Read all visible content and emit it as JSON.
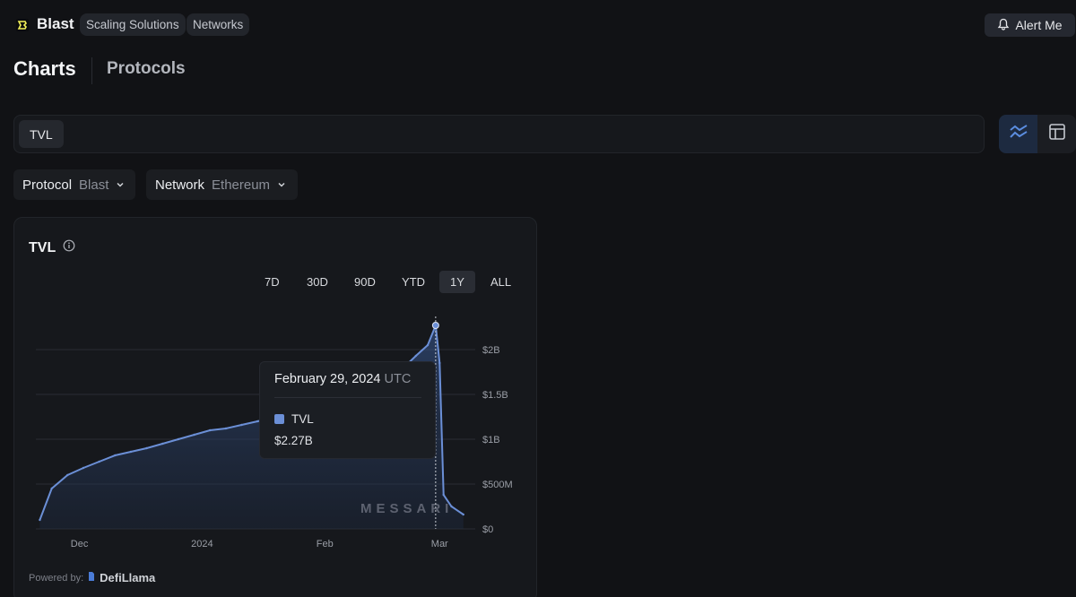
{
  "header": {
    "brand": "Blast",
    "pills": [
      "Scaling Solutions",
      "Networks"
    ],
    "alert_label": "Alert Me"
  },
  "tabs": {
    "active": "Charts",
    "other": "Protocols"
  },
  "metric_selector": {
    "chip": "TVL"
  },
  "view_modes": [
    "chart-view-icon",
    "table-view-icon"
  ],
  "filters": [
    {
      "key": "Protocol",
      "value": "Blast"
    },
    {
      "key": "Network",
      "value": "Ethereum"
    }
  ],
  "card": {
    "title": "TVL",
    "ranges": [
      "7D",
      "30D",
      "90D",
      "YTD",
      "1Y",
      "ALL"
    ],
    "active_range": "1Y",
    "tooltip": {
      "date": "February 29, 2024",
      "tz": "UTC",
      "series": "TVL",
      "value": "$2.27B"
    },
    "watermark": "MESSARI",
    "powered_by": "Powered by:",
    "powered_brand": "DefiLlama"
  },
  "colors": {
    "accent": "#6b8fd6",
    "background": "#111215",
    "card": "#16181c"
  },
  "chart_data": {
    "type": "area",
    "title": "TVL",
    "x_ticks": [
      "Dec",
      "2024",
      "Feb",
      "Mar"
    ],
    "y_ticks": [
      "$0",
      "$500M",
      "$1B",
      "$1.5B",
      "$2B"
    ],
    "ylim": [
      0,
      2500000000
    ],
    "x": [
      "2023-11-21",
      "2023-11-24",
      "2023-11-28",
      "2023-12-02",
      "2023-12-06",
      "2023-12-10",
      "2023-12-14",
      "2023-12-18",
      "2023-12-22",
      "2023-12-26",
      "2023-12-30",
      "2024-01-03",
      "2024-01-07",
      "2024-01-11",
      "2024-01-15",
      "2024-01-19",
      "2024-01-23",
      "2024-01-27",
      "2024-01-31",
      "2024-02-04",
      "2024-02-08",
      "2024-02-12",
      "2024-02-16",
      "2024-02-20",
      "2024-02-24",
      "2024-02-27",
      "2024-02-29",
      "2024-03-01",
      "2024-03-02",
      "2024-03-04",
      "2024-03-07"
    ],
    "series": [
      {
        "name": "TVL",
        "values": [
          100000000,
          450000000,
          600000000,
          680000000,
          750000000,
          820000000,
          860000000,
          900000000,
          950000000,
          1000000000,
          1050000000,
          1100000000,
          1120000000,
          1160000000,
          1200000000,
          1240000000,
          1290000000,
          1310000000,
          1380000000,
          1420000000,
          1500000000,
          1620000000,
          1700000000,
          1760000000,
          1930000000,
          2050000000,
          2270000000,
          1850000000,
          380000000,
          250000000,
          160000000
        ]
      }
    ],
    "hover_point": {
      "x": "2024-02-29",
      "value": 2270000000
    }
  }
}
